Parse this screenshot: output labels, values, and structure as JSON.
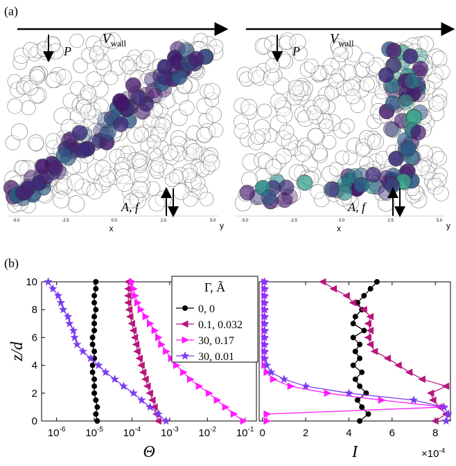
{
  "figure": {
    "panel_a_label": "(a)",
    "panel_b_label": "(b)"
  },
  "panel_a": {
    "scenes": [
      {
        "wall": {
          "symbol": "V",
          "subscript": "wall"
        },
        "pressure": "P",
        "forcing": "A, f",
        "x_axis": "x",
        "y_axis": "y",
        "xtick_labels": [
          "-5.0",
          "-2.5",
          "0.0",
          "2.5",
          "5.0"
        ]
      },
      {
        "wall": {
          "symbol": "V",
          "subscript": "wall"
        },
        "pressure": "P",
        "forcing": "A, f",
        "x_axis": "x",
        "y_axis": "y",
        "xtick_labels": [
          "-5.0",
          "-2.5",
          "0.0",
          "2.5",
          "5.0"
        ]
      }
    ]
  },
  "chart_data": [
    {
      "type": "line",
      "xscale": "log",
      "x_label": "Θ",
      "y_label": "z/d",
      "legend_title": "Γ, Ã",
      "legend": "upper right",
      "xlim": [
        4e-07,
        0.2
      ],
      "xticks": [
        {
          "value": 1e-06,
          "label": "10",
          "exponent": "-6"
        },
        {
          "value": 1e-05,
          "label": "10",
          "exponent": "-5"
        },
        {
          "value": 0.0001,
          "label": "10",
          "exponent": "-4"
        },
        {
          "value": 0.001,
          "label": "10",
          "exponent": "-3"
        },
        {
          "value": 0.01,
          "label": "10",
          "exponent": "-2"
        },
        {
          "value": 0.1,
          "label": "10",
          "exponent": "-1"
        }
      ],
      "ylim": [
        0,
        10
      ],
      "yticks": [
        0,
        2,
        4,
        6,
        8,
        10
      ],
      "y": [
        0,
        0.5,
        1,
        1.5,
        2,
        2.5,
        3,
        3.5,
        4,
        4.5,
        5,
        5.5,
        6,
        6.5,
        7,
        7.5,
        8,
        8.5,
        9,
        9.5,
        10
      ],
      "series": [
        {
          "name": "0, 0",
          "color": "#000000",
          "marker": "circle",
          "values": [
            1.2e-05,
            1.1e-05,
            1.2e-05,
            1.1e-05,
            1e-05,
            1e-05,
            1e-05,
            9e-06,
            9e-06,
            1e-05,
            1e-05,
            9e-06,
            9e-06,
            1e-05,
            1e-05,
            1e-05,
            1.1e-05,
            1e-05,
            1e-05,
            1.1e-05,
            1.1e-05
          ]
        },
        {
          "name": "0.1, 0.032",
          "color": "#b8167c",
          "marker": "triangle-left",
          "values": [
            0.0005,
            0.00045,
            0.0004,
            0.00035,
            0.0003,
            0.00026,
            0.00023,
            0.0002,
            0.00018,
            0.00016,
            0.00014,
            0.00013,
            0.00012,
            0.00011,
            0.0001,
            9e-05,
            8.5e-05,
            8e-05,
            8e-05,
            8e-05,
            8e-05
          ]
        },
        {
          "name": "30, 0.17",
          "color": "#ff1aff",
          "marker": "triangle-right",
          "values": [
            0.09,
            0.05,
            0.03,
            0.018,
            0.011,
            0.006,
            0.0035,
            0.0023,
            0.0015,
            0.0011,
            0.0008,
            0.0006,
            0.0005,
            0.0004,
            0.0003,
            0.00023,
            0.00017,
            0.00014,
            0.00012,
            0.00011,
            0.0001
          ]
        },
        {
          "name": "30, 0.01",
          "color": "#7a3cf0",
          "marker": "star",
          "values": [
            0.0008,
            0.0005,
            0.0003,
            0.00018,
            0.00011,
            6e-05,
            3.5e-05,
            2e-05,
            1.3e-05,
            8e-06,
            5e-06,
            3.5e-06,
            3e-06,
            2.8e-06,
            2.2e-06,
            2e-06,
            1.5e-06,
            1.3e-06,
            1.1e-06,
            8e-07,
            6e-07
          ]
        }
      ]
    },
    {
      "type": "line",
      "x_label": "I",
      "x_multiplier": {
        "label": "×10",
        "exponent": "-4"
      },
      "xlim": [
        -0.15,
        8.7
      ],
      "xticks": [
        0,
        2,
        4,
        6,
        8
      ],
      "ylim": [
        0,
        10
      ],
      "y": [
        0,
        0.5,
        1,
        1.5,
        2,
        2.5,
        3,
        3.5,
        4,
        4.5,
        5,
        5.5,
        6,
        6.5,
        7,
        7.5,
        8,
        8.5,
        9,
        9.5,
        10
      ],
      "series": [
        {
          "name": "0, 0",
          "color": "#000000",
          "marker": "circle",
          "values": [
            4.5,
            4.9,
            4.6,
            4.4,
            4.8,
            4.5,
            4.3,
            4.6,
            4.2,
            4.5,
            4.3,
            4.5,
            4.2,
            4.7,
            4.2,
            4.3,
            4.6,
            4.4,
            4.7,
            5.0,
            5.3
          ]
        },
        {
          "name": "0.1, 0.032",
          "color": "#b8167c",
          "marker": "triangle-left",
          "values": [
            8.0,
            8.5,
            8.2,
            7.9,
            7.8,
            8.5,
            7.4,
            6.8,
            6.3,
            5.8,
            5.2,
            5.0,
            4.9,
            5.0,
            4.9,
            5.0,
            4.7,
            4.2,
            3.9,
            3.3,
            2.8
          ]
        },
        {
          "name": "30, 0.17",
          "color": "#ff1aff",
          "marker": "triangle-right",
          "values": [
            0.2,
            0.2,
            8.4,
            5.5,
            3.0,
            1.3,
            0.5,
            0.2,
            0.1,
            0.1,
            0.1,
            0.1,
            0.1,
            0.1,
            0.1,
            0.1,
            0.1,
            0.1,
            0.1,
            0.1,
            0.1
          ]
        },
        {
          "name": "30, 0.01",
          "color": "#7a3cf0",
          "marker": "star",
          "values": [
            8.5,
            8.6,
            8.4,
            7.0,
            4.0,
            2.0,
            1.0,
            0.4,
            0.2,
            0.1,
            0.1,
            0.1,
            0.1,
            0.1,
            0.1,
            0.1,
            0.1,
            0.1,
            0.1,
            0.1,
            0.1
          ]
        }
      ]
    }
  ]
}
